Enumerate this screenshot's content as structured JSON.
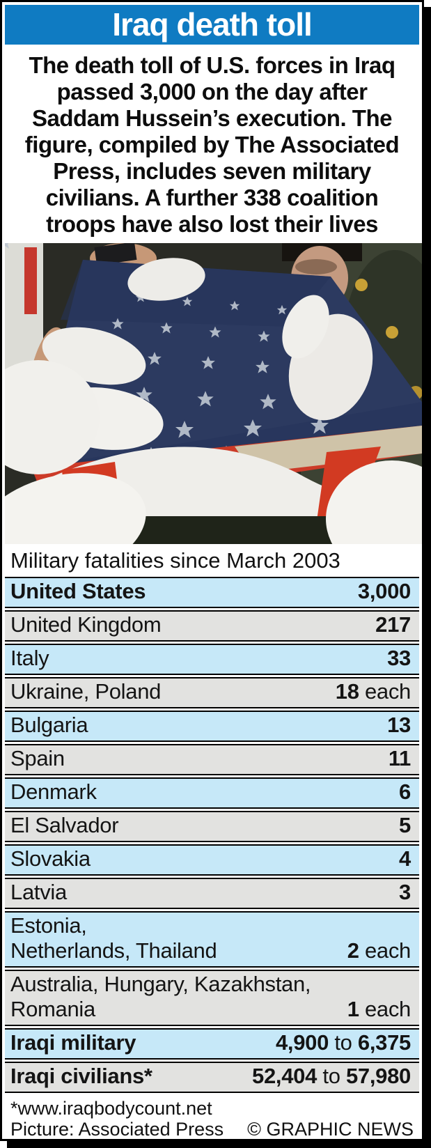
{
  "header": {
    "title": "Iraq death toll"
  },
  "intro": {
    "lines": [
      "The death toll of U.S. forces in Iraq",
      "passed 3,000 on the day after",
      "Saddam Hussein’s execution. The",
      "figure, compiled by The Associated",
      "Press, includes seven military",
      "civilians. A further 338 coalition",
      "troops have also lost their lives"
    ]
  },
  "subtitle": "Military fatalities since March 2003",
  "table": {
    "rows": [
      {
        "label_lines": [
          "United States"
        ],
        "bold_label": true,
        "shade": "blue",
        "value_parts": [
          {
            "t": "3,000",
            "b": true
          }
        ]
      },
      {
        "label_lines": [
          "United Kingdom"
        ],
        "bold_label": false,
        "shade": "gray",
        "value_parts": [
          {
            "t": "217",
            "b": true
          }
        ]
      },
      {
        "label_lines": [
          "Italy"
        ],
        "bold_label": false,
        "shade": "blue",
        "value_parts": [
          {
            "t": "33",
            "b": true
          }
        ]
      },
      {
        "label_lines": [
          "Ukraine, Poland"
        ],
        "bold_label": false,
        "shade": "gray",
        "value_parts": [
          {
            "t": "18",
            "b": true
          },
          {
            "t": " each",
            "b": false
          }
        ]
      },
      {
        "label_lines": [
          "Bulgaria"
        ],
        "bold_label": false,
        "shade": "blue",
        "value_parts": [
          {
            "t": "13",
            "b": true
          }
        ]
      },
      {
        "label_lines": [
          "Spain"
        ],
        "bold_label": false,
        "shade": "gray",
        "value_parts": [
          {
            "t": "11",
            "b": true
          }
        ]
      },
      {
        "label_lines": [
          "Denmark"
        ],
        "bold_label": false,
        "shade": "blue",
        "value_parts": [
          {
            "t": "6",
            "b": true
          }
        ]
      },
      {
        "label_lines": [
          "El Salvador"
        ],
        "bold_label": false,
        "shade": "gray",
        "value_parts": [
          {
            "t": "5",
            "b": true
          }
        ]
      },
      {
        "label_lines": [
          "Slovakia"
        ],
        "bold_label": false,
        "shade": "blue",
        "value_parts": [
          {
            "t": "4",
            "b": true
          }
        ]
      },
      {
        "label_lines": [
          "Latvia"
        ],
        "bold_label": false,
        "shade": "gray",
        "value_parts": [
          {
            "t": "3",
            "b": true
          }
        ]
      },
      {
        "label_lines": [
          "Estonia,",
          "Netherlands, Thailand"
        ],
        "bold_label": false,
        "shade": "blue",
        "value_parts": [
          {
            "t": "2",
            "b": true
          },
          {
            "t": " each",
            "b": false
          }
        ]
      },
      {
        "label_lines": [
          "Australia, Hungary, Kazakhstan,",
          "Romania"
        ],
        "bold_label": false,
        "shade": "gray",
        "value_parts": [
          {
            "t": "1",
            "b": true
          },
          {
            "t": " each",
            "b": false
          }
        ]
      },
      {
        "label_lines": [
          "Iraqi military"
        ],
        "bold_label": true,
        "shade": "blue",
        "value_parts": [
          {
            "t": "4,900",
            "b": true
          },
          {
            "t": " to ",
            "b": false
          },
          {
            "t": "6,375",
            "b": true
          }
        ]
      },
      {
        "label_lines": [
          "Iraqi civilians*"
        ],
        "bold_label": true,
        "shade": "gray",
        "value_parts": [
          {
            "t": "52,404",
            "b": true
          },
          {
            "t": " to ",
            "b": false
          },
          {
            "t": "57,980",
            "b": true
          }
        ]
      }
    ]
  },
  "footer": {
    "note": "*www.iraqbodycount.net",
    "credit": "Picture: Associated Press",
    "copyright": "© GRAPHIC NEWS"
  },
  "colors": {
    "header_blue": "#0f7bc2",
    "row_blue": "#c6e8f8",
    "row_gray": "#e2e2e0"
  },
  "chart_data": {
    "type": "table",
    "title": "Iraq death toll",
    "subtitle": "Military fatalities since March 2003",
    "rows": [
      [
        "United States",
        "3,000"
      ],
      [
        "United Kingdom",
        "217"
      ],
      [
        "Italy",
        "33"
      ],
      [
        "Ukraine, Poland",
        "18 each"
      ],
      [
        "Bulgaria",
        "13"
      ],
      [
        "Spain",
        "11"
      ],
      [
        "Denmark",
        "6"
      ],
      [
        "El Salvador",
        "5"
      ],
      [
        "Slovakia",
        "4"
      ],
      [
        "Latvia",
        "3"
      ],
      [
        "Estonia, Netherlands, Thailand",
        "2 each"
      ],
      [
        "Australia, Hungary, Kazakhstan, Romania",
        "1 each"
      ],
      [
        "Iraqi military",
        "4,900 to 6,375"
      ],
      [
        "Iraqi civilians*",
        "52,404 to 57,980"
      ]
    ],
    "notes": [
      "*www.iraqbodycount.net",
      "Picture: Associated Press",
      "© GRAPHIC NEWS"
    ]
  }
}
